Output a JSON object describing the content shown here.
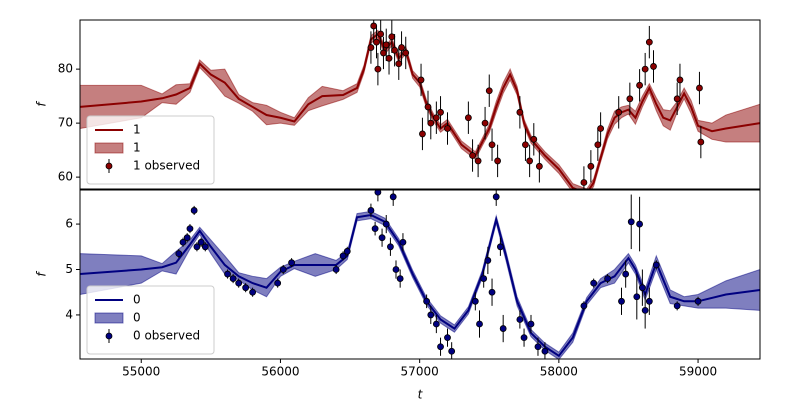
{
  "chart_data": [
    {
      "type": "line",
      "ylabel": "f",
      "xlim": [
        54560,
        59445
      ],
      "ylim": [
        57.8,
        89.1
      ],
      "yticks": [
        60,
        70,
        80
      ],
      "legend": "lower left",
      "series": [
        {
          "name": "1",
          "mark": "line",
          "color": "#8b0000",
          "x": [
            54560,
            55000,
            55150,
            55250,
            55350,
            55420,
            55500,
            55600,
            55700,
            55800,
            55900,
            56000,
            56100,
            56200,
            56300,
            56450,
            56550,
            56600,
            56650,
            56700,
            56750,
            56800,
            56850,
            56900,
            56950,
            57000,
            57050,
            57100,
            57150,
            57200,
            57300,
            57400,
            57450,
            57500,
            57550,
            57600,
            57650,
            57700,
            57750,
            57800,
            57850,
            57900,
            58000,
            58100,
            58200,
            58250,
            58300,
            58350,
            58400,
            58450,
            58500,
            58550,
            58600,
            58650,
            58700,
            58750,
            58800,
            58850,
            58900,
            58950,
            59000,
            59100,
            59200,
            59445
          ],
          "values": [
            73,
            74,
            74.6,
            75.3,
            76.5,
            81,
            79,
            77.5,
            74.5,
            73,
            71.5,
            71,
            70.3,
            73.5,
            75,
            75.2,
            76.5,
            80,
            85.5,
            86.5,
            83.5,
            85,
            82,
            83.5,
            79,
            77.5,
            73.5,
            71,
            69,
            70,
            66,
            64,
            66.5,
            69,
            73,
            76.5,
            79,
            76,
            70,
            67,
            65.5,
            64,
            61.5,
            58,
            57,
            59,
            63.5,
            68,
            71,
            72,
            72.5,
            71,
            74,
            76.5,
            73.5,
            71,
            70.5,
            73,
            75.5,
            73,
            69.5,
            68.5,
            69,
            70
          ]
        },
        {
          "name": "1",
          "mark": "band",
          "color": "#8b0000",
          "x": [
            54560,
            55000,
            55150,
            55250,
            55350,
            55420,
            55500,
            55600,
            55700,
            55800,
            55900,
            56000,
            56100,
            56200,
            56300,
            56450,
            56550,
            56600,
            56650,
            56700,
            56750,
            56800,
            56850,
            56900,
            56950,
            57000,
            57050,
            57100,
            57150,
            57200,
            57300,
            57400,
            57450,
            57500,
            57550,
            57600,
            57650,
            57700,
            57750,
            57800,
            57850,
            57900,
            58000,
            58100,
            58200,
            58250,
            58300,
            58350,
            58400,
            58450,
            58500,
            58550,
            58600,
            58650,
            58700,
            58750,
            58800,
            58850,
            58900,
            58950,
            59000,
            59100,
            59200,
            59445
          ],
          "lower": [
            69,
            71,
            73.8,
            73.5,
            75.7,
            80.3,
            78.2,
            75,
            73.7,
            72.2,
            69.7,
            70,
            69.6,
            72.3,
            73.2,
            74.4,
            75.7,
            79.3,
            84.8,
            85.8,
            82.8,
            84.3,
            81.3,
            82.8,
            78.3,
            76.7,
            72.8,
            70.3,
            68.3,
            69.3,
            65.3,
            63.3,
            65.8,
            68.2,
            72,
            75.5,
            78,
            75.2,
            69.3,
            66.3,
            64.8,
            63.3,
            60.7,
            57.2,
            56.2,
            58.3,
            62.8,
            67.1,
            69.8,
            71,
            71.7,
            69.8,
            73,
            75.7,
            72.3,
            69.5,
            68.7,
            72,
            74.5,
            71.8,
            68.5,
            67,
            66.5,
            66.5
          ],
          "upper": [
            77,
            77,
            75.4,
            77.1,
            77.3,
            81.7,
            79.8,
            80,
            75.3,
            73.8,
            73.3,
            72,
            71,
            74.7,
            76.8,
            76,
            77.3,
            80.7,
            86.2,
            87.2,
            84.2,
            85.7,
            82.7,
            84.2,
            79.7,
            78.3,
            74.2,
            71.7,
            69.7,
            70.7,
            66.7,
            64.7,
            67.2,
            69.8,
            74,
            77.5,
            80,
            76.8,
            70.7,
            67.7,
            66.2,
            64.7,
            62.3,
            58.8,
            57.8,
            59.7,
            64.2,
            68.9,
            72.2,
            73,
            73.3,
            72.2,
            75,
            77.3,
            74.7,
            72.5,
            72.3,
            74,
            76.5,
            74.2,
            70.5,
            70,
            71.5,
            73.5
          ]
        },
        {
          "name": "1 observed",
          "mark": "errorbar",
          "color": "#8b0000",
          "x": [
            56650,
            56670,
            56690,
            56700,
            56720,
            56740,
            56760,
            56780,
            56800,
            56820,
            56850,
            56870,
            56900,
            57010,
            57020,
            57060,
            57080,
            57120,
            57150,
            57200,
            57350,
            57380,
            57420,
            57470,
            57500,
            57520,
            57560,
            57720,
            57760,
            57790,
            57820,
            57860,
            58180,
            58230,
            58280,
            58300,
            58430,
            58510,
            58580,
            58620,
            58650,
            58680,
            58850,
            58870,
            59010,
            59020
          ],
          "values": [
            84,
            88,
            85,
            80,
            86.5,
            83,
            84.5,
            82,
            86,
            83.5,
            81,
            84,
            83,
            78,
            68,
            73,
            70,
            71,
            72,
            69,
            71,
            64,
            63,
            70,
            76,
            66,
            63,
            72,
            66,
            63,
            67,
            62,
            59,
            62,
            66,
            69,
            72,
            74.5,
            77,
            80,
            85,
            80.5,
            74.5,
            78,
            76.5,
            66.5
          ],
          "errors": [
            3,
            3,
            3,
            3,
            3,
            3,
            3,
            3,
            3,
            3,
            3,
            3,
            3,
            3,
            3,
            3,
            3,
            3,
            3,
            3,
            3,
            3,
            3,
            3,
            3,
            3,
            3,
            3,
            3,
            3,
            3,
            3,
            3,
            3,
            3,
            3,
            3,
            3,
            3,
            3,
            3,
            3,
            3,
            3,
            3,
            3
          ]
        }
      ]
    },
    {
      "type": "line",
      "xlabel": "t",
      "ylabel": "f",
      "xlim": [
        54560,
        59445
      ],
      "ylim": [
        3.03,
        6.75
      ],
      "xticks": [
        55000,
        56000,
        57000,
        58000,
        59000
      ],
      "yticks": [
        4,
        5,
        6
      ],
      "legend": "lower left",
      "series": [
        {
          "name": "0",
          "mark": "line",
          "color": "#000080",
          "x": [
            54560,
            55000,
            55150,
            55250,
            55350,
            55420,
            55500,
            55600,
            55700,
            55800,
            55900,
            56000,
            56100,
            56250,
            56400,
            56480,
            56550,
            56650,
            56750,
            56850,
            56950,
            57050,
            57150,
            57250,
            57350,
            57450,
            57550,
            57620,
            57700,
            57800,
            57900,
            58000,
            58100,
            58200,
            58300,
            58400,
            58500,
            58550,
            58620,
            58700,
            58800,
            58900,
            59000,
            59200,
            59445
          ],
          "values": [
            4.9,
            5.0,
            5.05,
            5.15,
            5.55,
            5.85,
            5.5,
            5.1,
            4.85,
            4.7,
            4.6,
            4.95,
            5.1,
            5.1,
            5.1,
            5.3,
            6.15,
            6.2,
            6.05,
            5.6,
            4.9,
            4.3,
            3.9,
            3.7,
            4.1,
            4.9,
            6.1,
            5.3,
            4.3,
            3.6,
            3.3,
            3.1,
            3.5,
            4.3,
            4.7,
            4.85,
            5.25,
            5.0,
            4.45,
            5.15,
            4.4,
            4.3,
            4.3,
            4.45,
            4.55
          ]
        },
        {
          "name": "0",
          "mark": "band",
          "color": "#000080",
          "x": [
            54560,
            55000,
            55150,
            55250,
            55350,
            55420,
            55500,
            55600,
            55700,
            55800,
            55900,
            56000,
            56100,
            56250,
            56400,
            56480,
            56550,
            56650,
            56750,
            56850,
            56950,
            57050,
            57150,
            57250,
            57350,
            57450,
            57550,
            57620,
            57700,
            57800,
            57900,
            58000,
            58100,
            58200,
            58300,
            58400,
            58500,
            58550,
            58620,
            58700,
            58800,
            58900,
            59000,
            59200,
            59445
          ],
          "lower": [
            4.45,
            4.7,
            4.97,
            4.9,
            5.45,
            5.77,
            5.35,
            4.9,
            4.77,
            4.55,
            4.4,
            4.85,
            5.02,
            4.85,
            5.0,
            5.22,
            6.07,
            6.12,
            5.97,
            5.52,
            4.82,
            4.22,
            3.82,
            3.62,
            4.02,
            4.82,
            6.02,
            5.2,
            4.2,
            3.52,
            3.22,
            3.02,
            3.4,
            4.22,
            4.6,
            4.7,
            5.15,
            4.9,
            4.33,
            5.0,
            4.25,
            4.2,
            4.15,
            4.15,
            4.1
          ],
          "upper": [
            5.35,
            5.3,
            5.13,
            5.4,
            5.65,
            5.93,
            5.65,
            5.3,
            4.93,
            4.85,
            4.8,
            5.05,
            5.18,
            5.35,
            5.2,
            5.38,
            6.23,
            6.28,
            6.13,
            5.68,
            4.98,
            4.38,
            3.98,
            3.78,
            4.18,
            4.98,
            6.18,
            5.4,
            4.4,
            3.68,
            3.38,
            3.18,
            3.6,
            4.38,
            4.8,
            5.0,
            5.35,
            5.1,
            4.57,
            5.3,
            4.55,
            4.4,
            4.45,
            4.75,
            5.0
          ]
        },
        {
          "name": "0 observed",
          "mark": "errorbar",
          "color": "#000080",
          "x": [
            55270,
            55300,
            55330,
            55350,
            55380,
            55400,
            55430,
            55460,
            55620,
            55660,
            55700,
            55750,
            55800,
            55980,
            56020,
            56080,
            56400,
            56450,
            56480,
            56650,
            56680,
            56700,
            56730,
            56760,
            56790,
            56810,
            56830,
            56860,
            56880,
            57050,
            57080,
            57120,
            57150,
            57200,
            57230,
            57400,
            57430,
            57460,
            57490,
            57520,
            57550,
            57580,
            57600,
            57720,
            57750,
            57800,
            57850,
            57900,
            58180,
            58250,
            58350,
            58450,
            58480,
            58520,
            58560,
            58580,
            58600,
            58620,
            58650,
            58700,
            58850,
            59000
          ],
          "values": [
            5.35,
            5.6,
            5.7,
            5.9,
            6.3,
            5.5,
            5.6,
            5.5,
            4.9,
            4.8,
            4.7,
            4.6,
            4.5,
            4.7,
            5.0,
            5.15,
            5.0,
            5.3,
            5.4,
            6.3,
            5.9,
            6.7,
            5.7,
            6.0,
            5.5,
            6.6,
            5.0,
            4.8,
            5.6,
            4.3,
            4.0,
            3.8,
            3.3,
            3.5,
            3.2,
            4.3,
            3.8,
            4.8,
            5.2,
            4.5,
            6.6,
            5.5,
            3.7,
            3.9,
            3.5,
            3.8,
            3.3,
            3.2,
            4.2,
            4.7,
            4.8,
            4.3,
            4.9,
            6.05,
            4.4,
            6.0,
            4.6,
            4.1,
            4.3,
            5.1,
            4.2,
            4.3
          ],
          "errors": [
            0.1,
            0.1,
            0.1,
            0.1,
            0.1,
            0.1,
            0.1,
            0.1,
            0.1,
            0.1,
            0.1,
            0.1,
            0.1,
            0.1,
            0.1,
            0.1,
            0.1,
            0.1,
            0.1,
            0.15,
            0.15,
            0.2,
            0.2,
            0.2,
            0.2,
            0.2,
            0.2,
            0.2,
            0.2,
            0.15,
            0.2,
            0.2,
            0.2,
            0.2,
            0.2,
            0.2,
            0.3,
            0.2,
            0.3,
            0.3,
            0.2,
            0.2,
            0.3,
            0.2,
            0.2,
            0.2,
            0.2,
            0.2,
            0.1,
            0.1,
            0.1,
            0.3,
            0.3,
            0.6,
            0.5,
            0.6,
            0.4,
            0.4,
            0.3,
            0.1,
            0.1,
            0.1
          ]
        }
      ]
    }
  ]
}
